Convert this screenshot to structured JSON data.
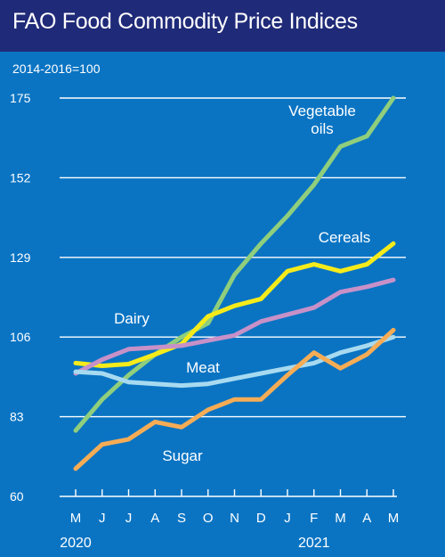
{
  "header": {
    "title": "FAO Food Commodity Price Indices"
  },
  "chart_data": {
    "type": "line",
    "title": "FAO Food Commodity Price Indices",
    "ylabel": "2014-2016=100",
    "xlabel": "",
    "x": [
      "M",
      "J",
      "J",
      "A",
      "S",
      "O",
      "N",
      "D",
      "J",
      "F",
      "M",
      "A",
      "M"
    ],
    "year_labels": [
      {
        "label": "2020",
        "index": 0
      },
      {
        "label": "2021",
        "index": 9
      }
    ],
    "yticks": [
      60,
      83,
      106,
      129,
      152,
      175
    ],
    "ylim": [
      60,
      175
    ],
    "grid": true,
    "series": [
      {
        "name": "Vegetable oils",
        "label_lines": [
          "Vegetable",
          "oils"
        ],
        "color": "#8fce7c",
        "values": [
          79,
          88,
          95,
          101,
          106,
          110,
          124,
          133,
          141,
          150,
          161,
          164,
          175
        ]
      },
      {
        "name": "Cereals",
        "label_lines": [
          "Cereals"
        ],
        "color": "#f6eb1a",
        "values": [
          98.5,
          97.7,
          98.2,
          101,
          104,
          112,
          115,
          117,
          125,
          127,
          125,
          127,
          133
        ]
      },
      {
        "name": "Dairy",
        "label_lines": [
          "Dairy"
        ],
        "color": "#c791c8",
        "values": [
          95.5,
          99.5,
          102.5,
          103,
          103.5,
          105,
          106.5,
          110.5,
          112.5,
          114.5,
          119,
          120.5,
          122.5
        ]
      },
      {
        "name": "Meat",
        "label_lines": [
          "Meat"
        ],
        "color": "#a7daf0",
        "values": [
          96,
          95.5,
          93,
          92.5,
          92,
          92.5,
          94,
          95.5,
          97,
          98.5,
          101.5,
          103.5,
          106
        ]
      },
      {
        "name": "Sugar",
        "label_lines": [
          "Sugar"
        ],
        "color": "#f6ac55",
        "values": [
          68,
          75,
          76.5,
          81.5,
          80,
          85,
          88,
          88,
          95,
          101.5,
          97,
          101,
          108
        ]
      }
    ]
  }
}
